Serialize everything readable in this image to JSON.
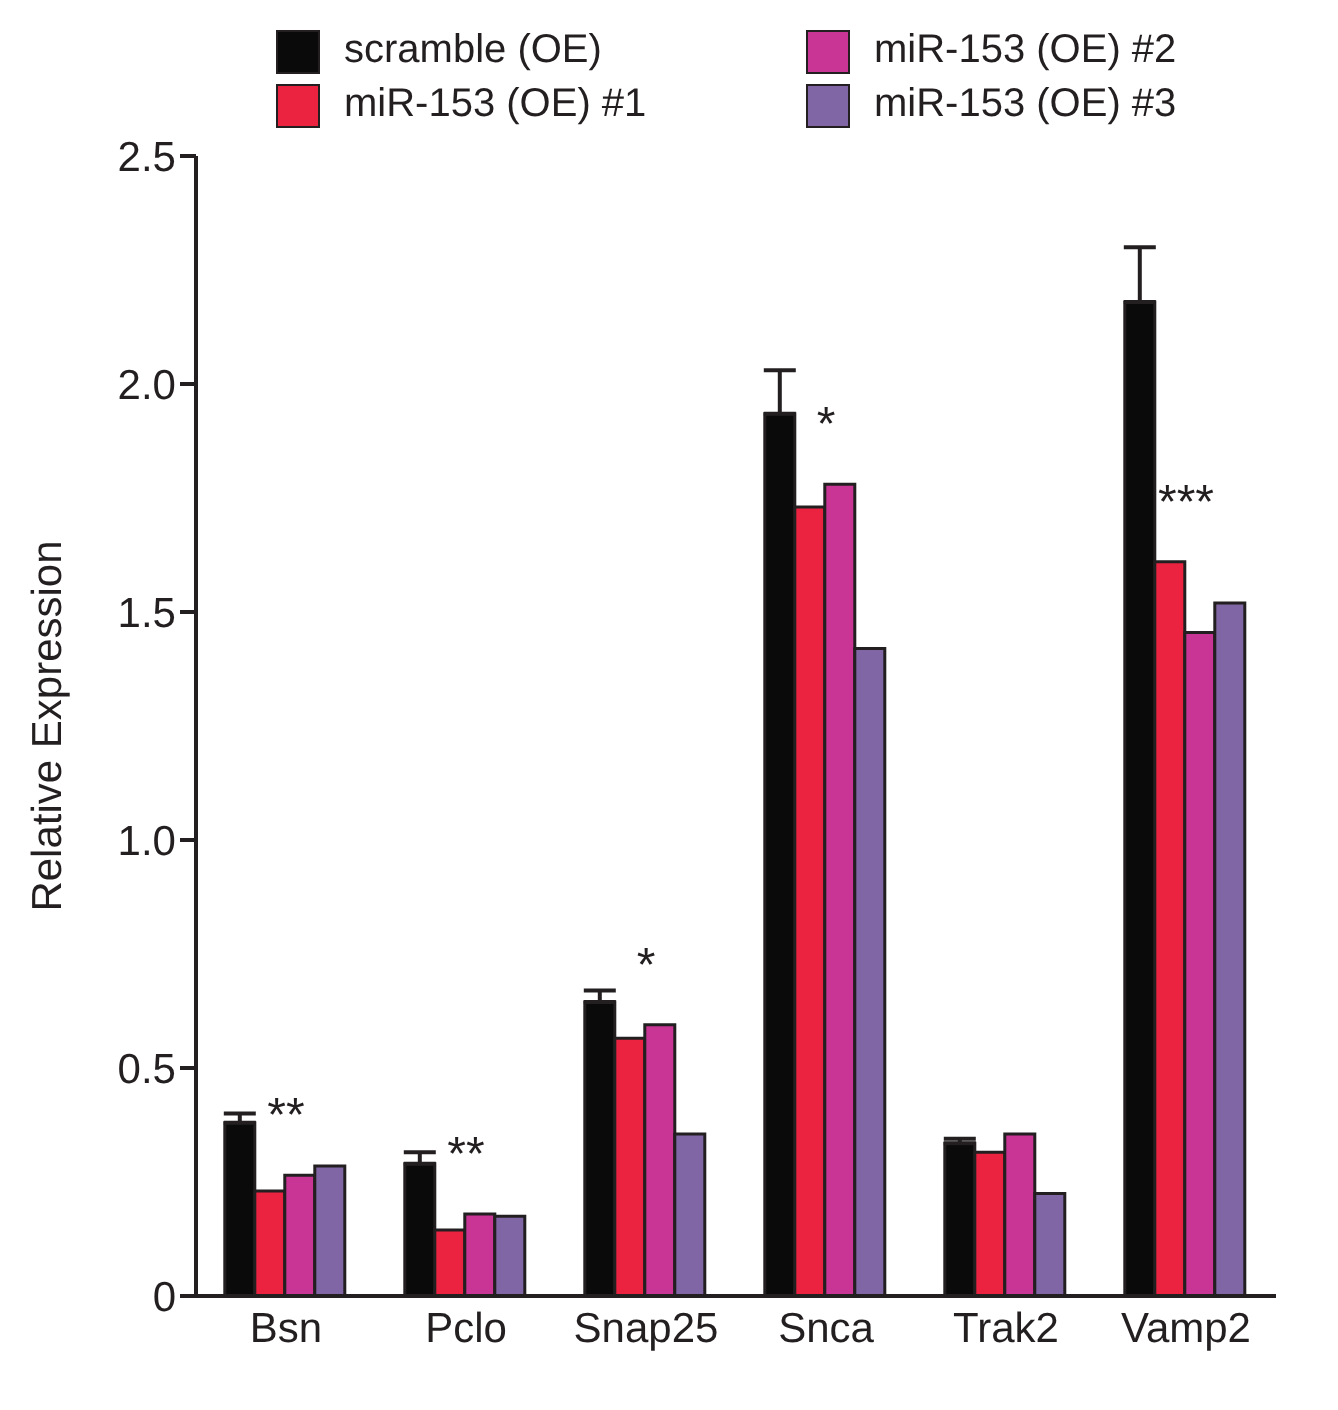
{
  "chart_data": {
    "type": "bar",
    "ylabel": "Relative Expression",
    "categories": [
      "Bsn",
      "Pclo",
      "Snap25",
      "Snca",
      "Trak2",
      "Vamp2"
    ],
    "series": [
      {
        "name": "scramble (OE)",
        "color": "#0a0a0a",
        "values": [
          0.38,
          0.29,
          0.645,
          1.935,
          0.335,
          2.18
        ],
        "errors": [
          [
            0.38,
            0.4
          ],
          [
            0.29,
            0.315
          ],
          [
            0.645,
            0.67
          ],
          [
            1.935,
            2.03
          ],
          [
            0.335,
            0.345
          ],
          [
            2.18,
            2.3
          ]
        ]
      },
      {
        "name": "miR-153 (OE) #1",
        "color": "#ec2340",
        "values": [
          0.23,
          0.145,
          0.565,
          1.73,
          0.315,
          1.61
        ]
      },
      {
        "name": "miR-153 (OE) #2",
        "color": "#c93595",
        "values": [
          0.265,
          0.18,
          0.595,
          1.78,
          0.355,
          1.455
        ]
      },
      {
        "name": "miR-153 (OE) #3",
        "color": "#8066a5",
        "values": [
          0.285,
          0.175,
          0.355,
          1.42,
          0.225,
          1.52
        ]
      }
    ],
    "ylim": [
      0,
      2.5
    ],
    "yticks": [
      0,
      0.5,
      {
        "value": 1,
        "label": "1.0"
      },
      1.5,
      {
        "value": 2,
        "label": "2.0"
      },
      2.5
    ],
    "annotations": [
      {
        "text": "**",
        "x": "Bsn",
        "y": 0.265
      },
      {
        "text": "**",
        "x": "Pclo",
        "y": 0.18
      },
      {
        "text": "*",
        "x": "Snap25",
        "y": 0.595
      },
      {
        "text": "*",
        "x": "Snca",
        "y": 1.78
      },
      {
        "text": "***",
        "x": "Vamp2",
        "y": 1.61
      }
    ],
    "grid": false,
    "legend": "top"
  }
}
